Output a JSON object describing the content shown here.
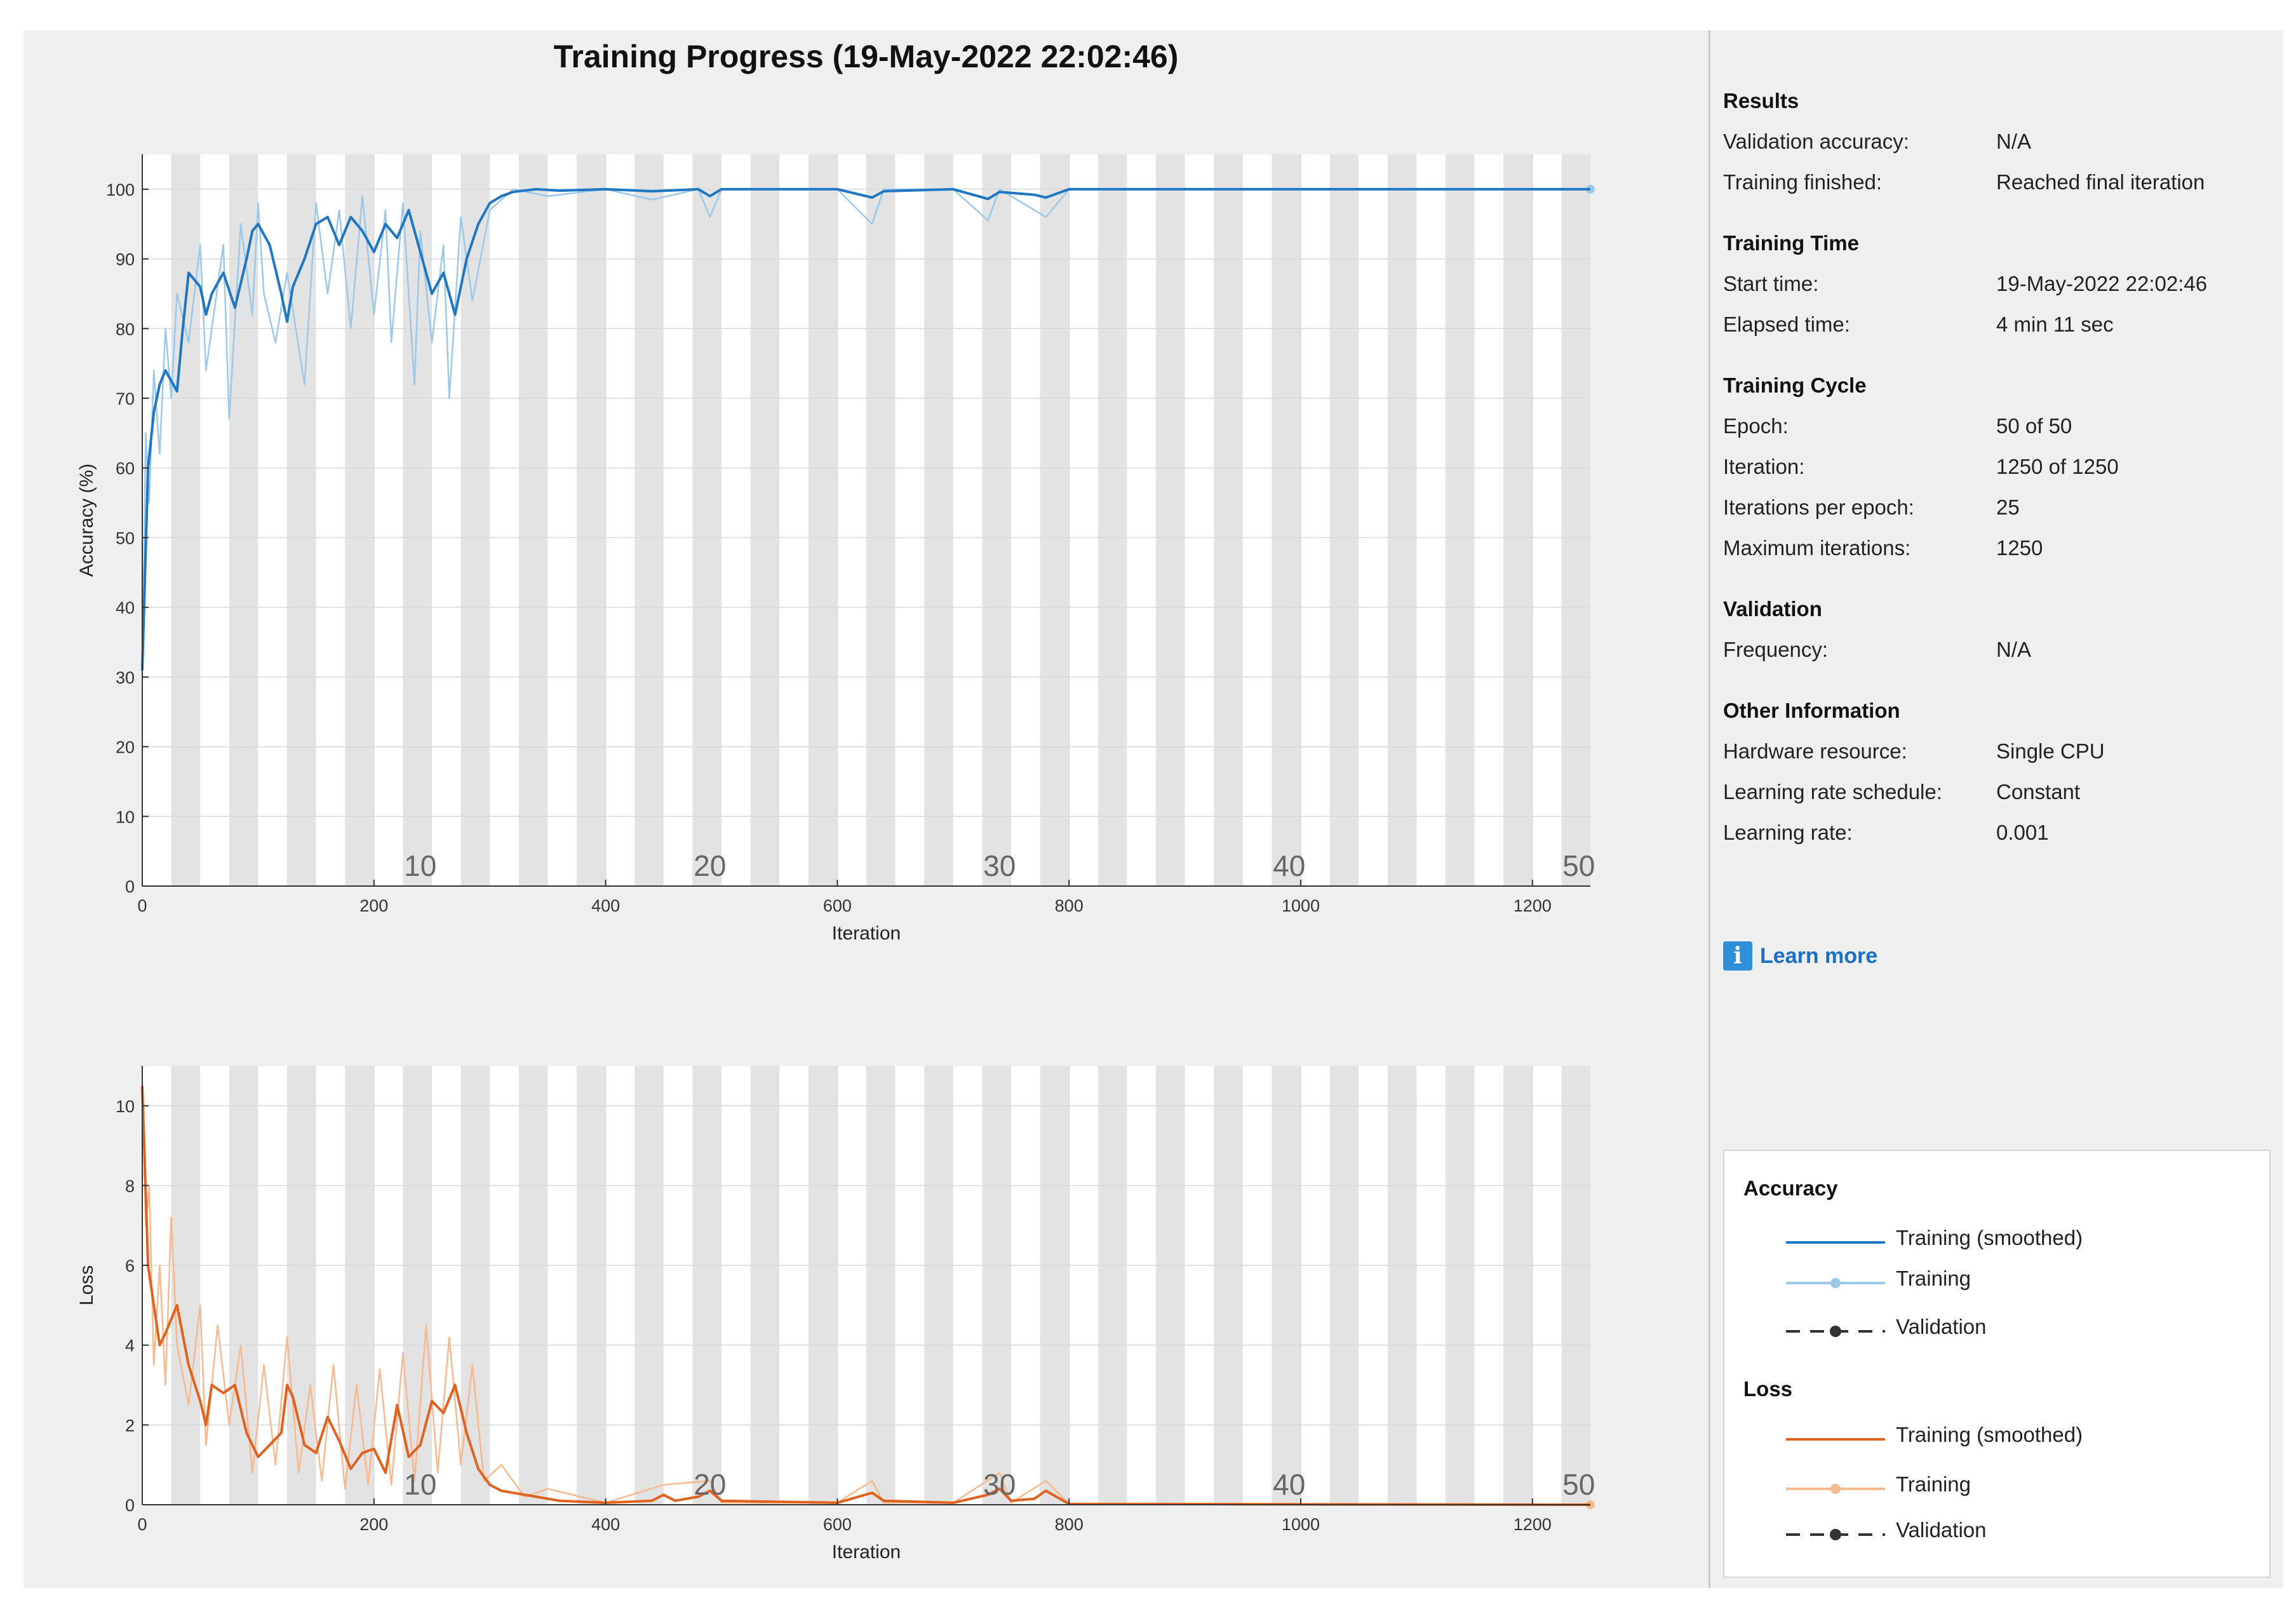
{
  "title": "Training Progress (19-May-2022 22:02:46)",
  "colors": {
    "accuracy_smoothed": "#1f77c4",
    "accuracy_raw": "#9cc8ea",
    "loss_smoothed": "#e0621e",
    "loss_raw": "#f6b990",
    "validation": "#333333",
    "epoch_band": "#e3e3e3"
  },
  "results": {
    "heading": "Results",
    "rows": [
      {
        "label": "Validation accuracy:",
        "value": "N/A"
      },
      {
        "label": "Training finished:",
        "value": "Reached final iteration"
      }
    ]
  },
  "training_time": {
    "heading": "Training Time",
    "rows": [
      {
        "label": "Start time:",
        "value": "19-May-2022 22:02:46"
      },
      {
        "label": "Elapsed time:",
        "value": "4 min 11 sec"
      }
    ]
  },
  "training_cycle": {
    "heading": "Training Cycle",
    "rows": [
      {
        "label": "Epoch:",
        "value": "50 of 50"
      },
      {
        "label": "Iteration:",
        "value": "1250 of 1250"
      },
      {
        "label": "Iterations per epoch:",
        "value": "25"
      },
      {
        "label": "Maximum iterations:",
        "value": "1250"
      }
    ]
  },
  "validation": {
    "heading": "Validation",
    "rows": [
      {
        "label": "Frequency:",
        "value": "N/A"
      }
    ]
  },
  "other_information": {
    "heading": "Other Information",
    "rows": [
      {
        "label": "Hardware resource:",
        "value": "Single CPU"
      },
      {
        "label": "Learning rate schedule:",
        "value": "Constant"
      },
      {
        "label": "Learning rate:",
        "value": "0.001"
      }
    ]
  },
  "learn_more": {
    "icon": "info-icon",
    "label": "Learn more"
  },
  "legend": {
    "accuracy_heading": "Accuracy",
    "accuracy_items": [
      "Training (smoothed)",
      "Training",
      "Validation"
    ],
    "loss_heading": "Loss",
    "loss_items": [
      "Training (smoothed)",
      "Training",
      "Validation"
    ]
  },
  "chart_data": [
    {
      "type": "line",
      "title": "",
      "xlabel": "Iteration",
      "ylabel": "Accuracy (%)",
      "xlim": [
        0,
        1250
      ],
      "ylim": [
        0,
        105
      ],
      "xticks": [
        0,
        200,
        400,
        600,
        800,
        1000,
        1200
      ],
      "yticks": [
        0,
        10,
        20,
        30,
        40,
        50,
        60,
        70,
        80,
        90,
        100
      ],
      "grid": true,
      "epoch_markers": [
        {
          "iteration": 240,
          "label": "10"
        },
        {
          "iteration": 490,
          "label": "20"
        },
        {
          "iteration": 740,
          "label": "30"
        },
        {
          "iteration": 990,
          "label": "40"
        },
        {
          "iteration": 1240,
          "label": "50"
        }
      ],
      "series": [
        {
          "name": "Training (smoothed)",
          "x": [
            0,
            5,
            10,
            15,
            20,
            30,
            35,
            40,
            50,
            55,
            60,
            70,
            80,
            90,
            95,
            100,
            110,
            120,
            125,
            130,
            140,
            150,
            160,
            170,
            180,
            190,
            200,
            210,
            220,
            230,
            240,
            250,
            260,
            270,
            280,
            290,
            300,
            310,
            320,
            340,
            360,
            400,
            440,
            480,
            490,
            500,
            600,
            630,
            640,
            700,
            730,
            740,
            770,
            780,
            800,
            1250
          ],
          "y": [
            31,
            60,
            68,
            72,
            74,
            71,
            80,
            88,
            86,
            82,
            85,
            88,
            83,
            90,
            94,
            95,
            92,
            85,
            81,
            86,
            90,
            95,
            96,
            92,
            96,
            94,
            91,
            95,
            93,
            97,
            91,
            85,
            88,
            82,
            90,
            95,
            98,
            99,
            99.6,
            100,
            99.8,
            100,
            99.7,
            100,
            99,
            100,
            100,
            98.8,
            99.7,
            100,
            98.6,
            99.6,
            99.2,
            98.8,
            100,
            100
          ]
        },
        {
          "name": "Training",
          "x": [
            0,
            3,
            6,
            10,
            15,
            20,
            25,
            30,
            40,
            50,
            55,
            70,
            75,
            85,
            95,
            100,
            105,
            115,
            125,
            140,
            150,
            160,
            170,
            180,
            190,
            200,
            210,
            215,
            225,
            235,
            240,
            250,
            260,
            265,
            275,
            285,
            300,
            320,
            350,
            400,
            440,
            480,
            490,
            500,
            600,
            630,
            640,
            700,
            730,
            740,
            770,
            780,
            800,
            1250
          ],
          "y": [
            31,
            65,
            55,
            74,
            62,
            80,
            70,
            85,
            78,
            92,
            74,
            92,
            67,
            95,
            82,
            98,
            85,
            78,
            88,
            72,
            98,
            85,
            97,
            80,
            99,
            82,
            97,
            78,
            98,
            72,
            94,
            78,
            92,
            70,
            96,
            84,
            97,
            100,
            99,
            100,
            98.5,
            100,
            96,
            100,
            100,
            95,
            100,
            100,
            95.5,
            100,
            97,
            96,
            100,
            100
          ]
        },
        {
          "name": "Validation",
          "x": [],
          "y": []
        }
      ]
    },
    {
      "type": "line",
      "title": "",
      "xlabel": "Iteration",
      "ylabel": "Loss",
      "xlim": [
        0,
        1250
      ],
      "ylim": [
        0,
        11
      ],
      "xticks": [
        0,
        200,
        400,
        600,
        800,
        1000,
        1200
      ],
      "yticks": [
        0,
        2,
        4,
        6,
        8,
        10
      ],
      "grid": true,
      "epoch_markers": [
        {
          "iteration": 240,
          "label": "10"
        },
        {
          "iteration": 490,
          "label": "20"
        },
        {
          "iteration": 740,
          "label": "30"
        },
        {
          "iteration": 990,
          "label": "40"
        },
        {
          "iteration": 1240,
          "label": "50"
        }
      ],
      "series": [
        {
          "name": "Training (smoothed)",
          "x": [
            0,
            5,
            10,
            15,
            20,
            30,
            40,
            50,
            55,
            60,
            70,
            80,
            90,
            100,
            110,
            120,
            125,
            130,
            140,
            150,
            160,
            170,
            180,
            190,
            200,
            210,
            220,
            230,
            240,
            250,
            260,
            270,
            280,
            290,
            300,
            310,
            320,
            340,
            360,
            400,
            440,
            450,
            460,
            480,
            490,
            500,
            600,
            630,
            640,
            700,
            730,
            740,
            750,
            770,
            780,
            800,
            1250
          ],
          "y": [
            10.5,
            6,
            5,
            4,
            4.3,
            5,
            3.5,
            2.6,
            2,
            3,
            2.8,
            3,
            1.8,
            1.2,
            1.5,
            1.8,
            3,
            2.7,
            1.5,
            1.3,
            2.2,
            1.6,
            0.9,
            1.3,
            1.4,
            0.8,
            2.5,
            1.2,
            1.5,
            2.6,
            2.3,
            3,
            1.8,
            0.9,
            0.5,
            0.35,
            0.3,
            0.2,
            0.1,
            0.05,
            0.1,
            0.25,
            0.1,
            0.2,
            0.35,
            0.1,
            0.05,
            0.3,
            0.1,
            0.05,
            0.25,
            0.4,
            0.1,
            0.15,
            0.35,
            0.02,
            0
          ]
        },
        {
          "name": "Training",
          "x": [
            0,
            3,
            6,
            10,
            15,
            20,
            25,
            30,
            40,
            50,
            55,
            65,
            75,
            85,
            95,
            105,
            115,
            125,
            135,
            145,
            155,
            165,
            175,
            185,
            195,
            205,
            215,
            225,
            235,
            245,
            255,
            265,
            275,
            285,
            295,
            310,
            330,
            350,
            400,
            450,
            490,
            500,
            600,
            630,
            640,
            700,
            740,
            750,
            780,
            800,
            1250
          ],
          "y": [
            10.5,
            7,
            8,
            3.5,
            6,
            3,
            7.2,
            4,
            2.5,
            5,
            1.5,
            4.5,
            2,
            4,
            0.8,
            3.5,
            1,
            4.2,
            0.8,
            3,
            0.6,
            3.5,
            0.4,
            3,
            0.5,
            3.4,
            0.5,
            3.8,
            0.6,
            4.5,
            0.8,
            4.2,
            1,
            3.5,
            0.6,
            1,
            0.2,
            0.4,
            0.05,
            0.5,
            0.6,
            0.05,
            0.05,
            0.6,
            0.05,
            0.05,
            0.8,
            0.05,
            0.6,
            0.02,
            0
          ]
        },
        {
          "name": "Validation",
          "x": [],
          "y": []
        }
      ]
    }
  ]
}
